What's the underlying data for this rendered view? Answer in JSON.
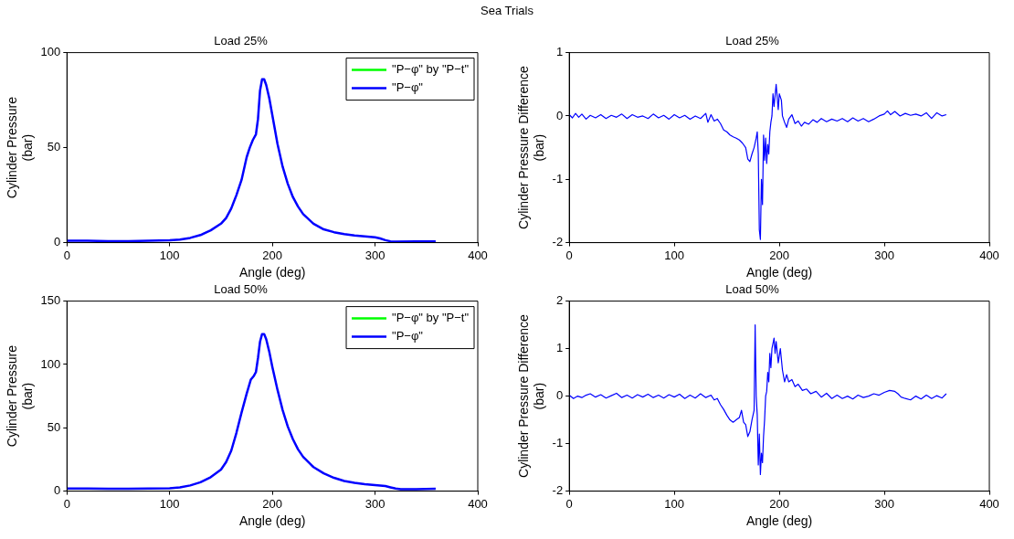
{
  "chart_data": [
    {
      "type": "line",
      "title": "Load 25%",
      "annotations": [
        "Sea Trials"
      ],
      "xlabel": "Angle (deg)",
      "ylabel": "Cylinder Pressure\n(bar)",
      "xlim": [
        0,
        400
      ],
      "xticks": [
        0,
        100,
        200,
        300,
        400
      ],
      "ylim": [
        0,
        100
      ],
      "yticks": [
        0,
        50,
        100
      ],
      "legend": "top right",
      "marker": "none",
      "series": [
        {
          "name": "\"P−φ\" by \"P−t\"",
          "color": "#00ff00"
        },
        {
          "name": "\"P−φ\"",
          "color": "#0000ff",
          "x": [
            0,
            20,
            40,
            60,
            80,
            100,
            110,
            120,
            130,
            140,
            150,
            155,
            160,
            165,
            170,
            175,
            178,
            181,
            184,
            186,
            188,
            190,
            192,
            194,
            197,
            200,
            205,
            210,
            215,
            220,
            225,
            230,
            240,
            250,
            260,
            270,
            280,
            290,
            300,
            305,
            310,
            315,
            320,
            340,
            359
          ],
          "values": [
            1,
            1,
            0.8,
            0.8,
            1,
            1.2,
            1.6,
            2.5,
            4,
            6.5,
            10,
            13,
            18,
            25,
            33,
            45,
            50,
            54,
            57,
            65,
            80,
            86,
            86,
            83,
            76,
            67,
            52,
            40,
            31,
            24,
            19,
            15,
            10,
            7,
            5.5,
            4.5,
            3.8,
            3.3,
            2.8,
            2.2,
            1.3,
            0.7,
            0.5,
            0.6,
            0.6
          ]
        }
      ]
    },
    {
      "type": "line",
      "title": "Load 25%",
      "xlabel": "Angle (deg)",
      "ylabel": "Cylinder Pressure Difference\n(bar)",
      "xlim": [
        0,
        400
      ],
      "xticks": [
        0,
        100,
        200,
        300,
        400
      ],
      "ylim": [
        -2,
        1
      ],
      "yticks": [
        -2,
        -1,
        0,
        1
      ],
      "marker": "none",
      "series": [
        {
          "color": "#0000ff",
          "x": [
            0,
            3,
            6,
            9,
            12,
            16,
            20,
            25,
            30,
            35,
            40,
            45,
            50,
            55,
            60,
            65,
            70,
            75,
            80,
            85,
            90,
            95,
            100,
            105,
            110,
            115,
            120,
            125,
            130,
            132,
            135,
            138,
            141,
            144,
            147,
            150,
            153,
            156,
            159,
            162,
            165,
            168,
            170,
            172,
            174,
            176,
            178,
            179,
            180,
            181,
            182,
            183,
            184,
            185,
            186,
            187,
            188,
            189,
            190,
            191,
            192,
            193,
            194,
            195,
            197,
            198,
            199,
            200,
            202,
            203,
            205,
            207,
            209,
            212,
            215,
            218,
            221,
            224,
            228,
            232,
            236,
            240,
            245,
            250,
            255,
            260,
            265,
            270,
            275,
            280,
            285,
            290,
            295,
            300,
            303,
            306,
            310,
            315,
            320,
            325,
            330,
            335,
            340,
            345,
            350,
            355,
            359
          ],
          "values": [
            0.02,
            -0.03,
            0.04,
            -0.02,
            0.03,
            -0.05,
            0.01,
            -0.03,
            0.02,
            -0.04,
            0.01,
            -0.02,
            0.03,
            -0.04,
            0.02,
            -0.02,
            0,
            -0.04,
            0.03,
            -0.03,
            0.01,
            -0.05,
            0.02,
            -0.03,
            0.01,
            -0.05,
            0,
            -0.04,
            0.04,
            -0.1,
            0.02,
            -0.08,
            -0.05,
            -0.12,
            -0.22,
            -0.25,
            -0.3,
            -0.33,
            -0.35,
            -0.38,
            -0.43,
            -0.5,
            -0.68,
            -0.72,
            -0.6,
            -0.5,
            -0.35,
            -0.25,
            -0.6,
            -1.8,
            -1.95,
            -1,
            -1.4,
            -0.3,
            -0.7,
            -0.35,
            -0.75,
            -0.45,
            -0.6,
            -0.25,
            -0.1,
            0,
            0.35,
            0.15,
            0.5,
            0.3,
            0.1,
            0.35,
            0.25,
            0,
            -0.1,
            -0.18,
            -0.05,
            0.02,
            -0.12,
            -0.08,
            -0.16,
            -0.1,
            -0.13,
            -0.06,
            -0.1,
            -0.04,
            -0.09,
            -0.05,
            -0.08,
            -0.04,
            -0.09,
            -0.03,
            -0.08,
            -0.04,
            -0.09,
            -0.05,
            0,
            0.03,
            0.08,
            0.02,
            0.07,
            0,
            0.04,
            0.01,
            0.03,
            0,
            0.05,
            -0.04,
            0.05,
            0,
            0.02
          ]
        }
      ]
    },
    {
      "type": "line",
      "title": "Load 50%",
      "xlabel": "Angle (deg)",
      "ylabel": "Cylinder Pressure\n(bar)",
      "xlim": [
        0,
        400
      ],
      "xticks": [
        0,
        100,
        200,
        300,
        400
      ],
      "ylim": [
        0,
        150
      ],
      "yticks": [
        0,
        50,
        100,
        150
      ],
      "legend": "top right",
      "marker": "none",
      "series": [
        {
          "name": "\"P−φ\" by \"P−t\"",
          "color": "#00ff00"
        },
        {
          "name": "\"P−φ\"",
          "color": "#0000ff",
          "x": [
            0,
            20,
            40,
            60,
            80,
            100,
            110,
            120,
            130,
            140,
            150,
            155,
            160,
            165,
            170,
            175,
            179,
            182,
            184,
            186,
            188,
            190,
            192,
            194,
            197,
            200,
            205,
            210,
            215,
            220,
            225,
            230,
            240,
            250,
            260,
            270,
            280,
            290,
            300,
            310,
            315,
            320,
            325,
            340,
            359
          ],
          "values": [
            2,
            2,
            1.8,
            1.8,
            2,
            2.3,
            3,
            4.5,
            7,
            11,
            17,
            23,
            32,
            46,
            62,
            77,
            88,
            91,
            94,
            105,
            118,
            124,
            124,
            120,
            110,
            98,
            80,
            64,
            51,
            41,
            33,
            27,
            19,
            14,
            10.5,
            8,
            6.5,
            5.5,
            4.8,
            4,
            3,
            2,
            1.5,
            1.5,
            1.8
          ]
        }
      ]
    },
    {
      "type": "line",
      "title": "Load 50%",
      "xlabel": "Angle (deg)",
      "ylabel": "Cylinder Pressure Difference\n(bar)",
      "xlim": [
        0,
        400
      ],
      "xticks": [
        0,
        100,
        200,
        300,
        400
      ],
      "ylim": [
        -2,
        2
      ],
      "yticks": [
        -2,
        -1,
        0,
        1,
        2
      ],
      "marker": "none",
      "series": [
        {
          "color": "#0000ff",
          "x": [
            0,
            4,
            8,
            12,
            16,
            20,
            25,
            30,
            35,
            40,
            45,
            50,
            55,
            60,
            65,
            70,
            75,
            80,
            85,
            90,
            95,
            100,
            105,
            110,
            115,
            120,
            125,
            130,
            135,
            138,
            141,
            144,
            147,
            150,
            153,
            156,
            159,
            162,
            164,
            166,
            168,
            170,
            172,
            174,
            176,
            177,
            178,
            179,
            180,
            181,
            182,
            183,
            184,
            185,
            186,
            187,
            188,
            189,
            190,
            191,
            192,
            193,
            195,
            196,
            197,
            199,
            201,
            203,
            205,
            207,
            209,
            212,
            215,
            218,
            222,
            226,
            230,
            235,
            240,
            245,
            250,
            255,
            260,
            265,
            270,
            275,
            280,
            285,
            290,
            295,
            300,
            305,
            310,
            313,
            316,
            320,
            325,
            330,
            335,
            340,
            345,
            350,
            355,
            359
          ],
          "values": [
            0.02,
            -0.05,
            0,
            -0.03,
            0.02,
            0.05,
            -0.02,
            0.03,
            -0.04,
            0.01,
            0.06,
            -0.03,
            0.02,
            -0.04,
            0.03,
            -0.02,
            0.04,
            -0.03,
            0.02,
            -0.04,
            0.03,
            -0.02,
            0.04,
            -0.05,
            0.02,
            -0.04,
            0.05,
            -0.03,
            0.02,
            -0.08,
            -0.05,
            -0.18,
            -0.28,
            -0.4,
            -0.5,
            -0.55,
            -0.5,
            -0.45,
            -0.3,
            -0.55,
            -0.6,
            -0.85,
            -0.75,
            -0.5,
            -0.3,
            1.5,
            0,
            -0.4,
            -1.45,
            -0.8,
            -1.65,
            -1.2,
            -1.4,
            -0.85,
            -0.5,
            0,
            0.1,
            0.5,
            0.3,
            0.9,
            0.6,
            1,
            1.22,
            0.9,
            1.15,
            0.7,
            1,
            0.55,
            0.3,
            0.45,
            0.3,
            0.35,
            0.2,
            0.25,
            0.12,
            0.15,
            0.05,
            0.1,
            -0.02,
            0.06,
            -0.05,
            0.02,
            -0.05,
            0,
            -0.06,
            0.02,
            -0.03,
            0,
            0.05,
            0.02,
            0.08,
            0.12,
            0.1,
            0.05,
            -0.02,
            -0.05,
            -0.08,
            0,
            -0.06,
            0.02,
            -0.05,
            0.01,
            -0.04,
            0.05
          ]
        }
      ]
    }
  ]
}
